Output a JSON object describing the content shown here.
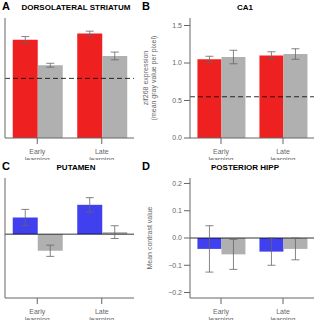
{
  "chart_data": [
    {
      "type": "bar",
      "title": "DORSOLATERAL STRIATUM",
      "annotation": "A",
      "categories": [
        "Early learning",
        "Late learning"
      ],
      "series": [
        {
          "color": "#ee2020",
          "values": [
            1.27,
            1.35
          ],
          "errors": [
            0.04,
            0.03
          ]
        },
        {
          "color": "#b0b0b0",
          "values": [
            0.94,
            1.06
          ],
          "errors": [
            0.025,
            0.05
          ]
        }
      ],
      "reference_line": {
        "value": 0.77,
        "line_style": "dashed"
      },
      "ylim": [
        0.0,
        1.55
      ],
      "tick_labels": "x",
      "grid": false
    },
    {
      "type": "bar",
      "title": "CA1",
      "annotation": "B",
      "categories": [
        "Early learning",
        "Late learning"
      ],
      "series": [
        {
          "color": "#ee2020",
          "values": [
            1.05,
            1.1
          ],
          "errors": [
            0.04,
            0.05
          ]
        },
        {
          "color": "#b0b0b0",
          "values": [
            1.08,
            1.12
          ],
          "errors": [
            0.09,
            0.07
          ]
        }
      ],
      "reference_line": {
        "value": 0.55,
        "line_style": "dashed"
      },
      "ylim": [
        0.0,
        1.6
      ],
      "yticks": [
        {
          "value": 0.0,
          "label": "0.0"
        },
        0.5,
        {
          "value": 1.0,
          "label": "1.0"
        },
        1.5
      ],
      "y_label": "zif268 expression\n(mean gray value per pixel)",
      "grid": false
    },
    {
      "type": "bar",
      "title": "PUTAMEN",
      "annotation": "C",
      "categories": [
        "Early learning",
        "Late learning"
      ],
      "series": [
        {
          "color": "#4040ee",
          "values": [
            0.065,
            0.115
          ],
          "errors": [
            0.032,
            0.028
          ]
        },
        {
          "color": "#b0b0b0",
          "values": [
            -0.065,
            0.008
          ],
          "errors": [
            0.022,
            0.025
          ]
        }
      ],
      "reference_line": {
        "value": 0,
        "line_style": "solid"
      },
      "ylim": [
        -0.25,
        0.22
      ],
      "tick_labels": "x",
      "grid": false
    },
    {
      "type": "bar",
      "title": "POSTERIOR HIPP",
      "annotation": "D",
      "categories": [
        "Early learning",
        "Late learning"
      ],
      "series": [
        {
          "color": "#4040ee",
          "values": [
            -0.04,
            -0.05
          ],
          "errors": [
            0.085,
            0.05
          ]
        },
        {
          "color": "#b0b0b0",
          "values": [
            -0.06,
            -0.04
          ],
          "errors": [
            0.055,
            0.04
          ]
        }
      ],
      "reference_line": {
        "value": 0,
        "line_style": "solid"
      },
      "ylim": [
        -0.22,
        0.22
      ],
      "yticks": [
        {
          "value": -0.2,
          "label": "−0.2"
        },
        {
          "value": -0.1,
          "label": "−0.1"
        },
        {
          "value": 0.0,
          "label": "0.0"
        },
        0.1,
        0.2
      ],
      "y_label": "Mean contrast value",
      "grid": false
    }
  ]
}
